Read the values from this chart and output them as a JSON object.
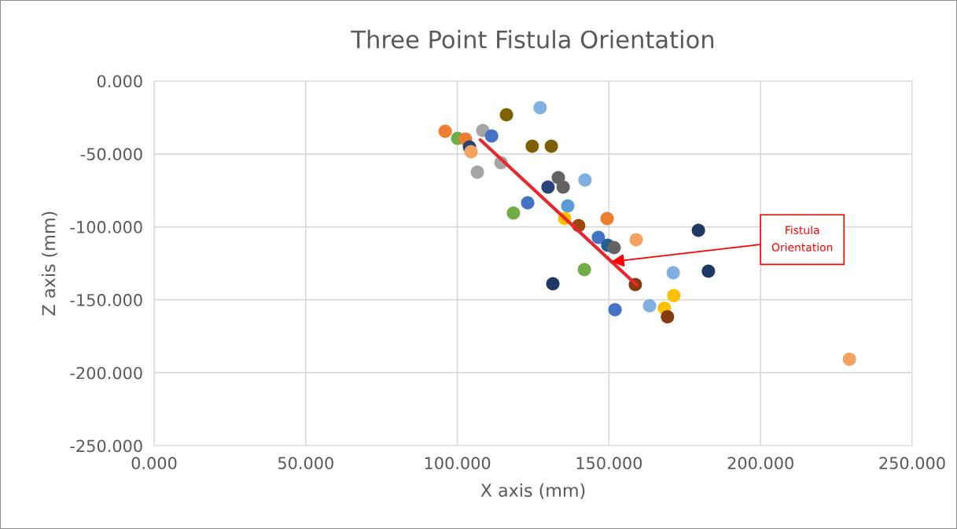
{
  "chart_data": {
    "type": "scatter",
    "title": "Three Point Fistula Orientation",
    "xlabel": "X axis (mm)",
    "ylabel": "Z axis (mm)",
    "xlim": [
      0,
      250
    ],
    "ylim": [
      -250,
      0
    ],
    "xticks": [
      {
        "value": 0,
        "label": "0.000"
      },
      {
        "value": 50,
        "label": "50.000"
      },
      {
        "value": 100,
        "label": "100.000"
      },
      {
        "value": 150,
        "label": "150.000"
      },
      {
        "value": 200,
        "label": "200.000"
      },
      {
        "value": 250,
        "label": "250.000"
      }
    ],
    "yticks": [
      {
        "value": 0,
        "label": "0.000"
      },
      {
        "value": -50,
        "label": "-50.000"
      },
      {
        "value": -100,
        "label": "-100.000"
      },
      {
        "value": -150,
        "label": "-150.000"
      },
      {
        "value": -200,
        "label": "-200.000"
      },
      {
        "value": -250,
        "label": "-250.000"
      }
    ],
    "grid": true,
    "legend": false,
    "series": [
      {
        "marker": "circle",
        "x": [
          96.0,
          100.1,
          102.7,
          104.0,
          104.5,
          108.4,
          111.3,
          116.2,
          127.3,
          124.7,
          131.0,
          106.6,
          114.4,
          133.3,
          129.9,
          134.9,
          142.1,
          123.2,
          118.5,
          136.4,
          135.4,
          140.0,
          149.4,
          146.5,
          149.6,
          151.7,
          159.0,
          179.5,
          141.9,
          131.5,
          171.2,
          182.8,
          158.7,
          171.4,
          152.0,
          163.4,
          168.3,
          169.3,
          229.3
        ],
        "values": [
          -34.5,
          -39.3,
          -39.9,
          -45.3,
          -48.5,
          -33.9,
          -37.7,
          -23.2,
          -18.3,
          -44.7,
          -44.7,
          -62.5,
          -56.0,
          -66.3,
          -72.7,
          -72.7,
          -67.9,
          -83.5,
          -90.5,
          -85.7,
          -94.3,
          -99.1,
          -94.3,
          -107.2,
          -112.6,
          -114.2,
          -108.8,
          -102.4,
          -129.3,
          -139.0,
          -131.5,
          -130.4,
          -139.5,
          -147.1,
          -156.8,
          -154.1,
          -155.7,
          -161.6,
          -190.7
        ],
        "colors": [
          "#ed7d31",
          "#70ad47",
          "#ed7d31",
          "#264478",
          "#f4a261",
          "#a5a5a5",
          "#4472c4",
          "#7f6000",
          "#7fb0e0",
          "#7f6000",
          "#7f6000",
          "#a5a5a5",
          "#a5a5a5",
          "#636363",
          "#264478",
          "#636363",
          "#7fb0e0",
          "#4472c4",
          "#70ad47",
          "#5b9bd5",
          "#ffc000",
          "#9e480e",
          "#ed7d31",
          "#4472c4",
          "#255e91",
          "#636363",
          "#f4a261",
          "#1f3864",
          "#70ad47",
          "#1f3864",
          "#7fb0e0",
          "#1f3864",
          "#843c0c",
          "#ffc000",
          "#4472c4",
          "#7fb0e0",
          "#ffc000",
          "#843c0c",
          "#f4a261"
        ]
      },
      {
        "type": "line",
        "color": "#e8262b",
        "x": [
          107.6,
          159.2
        ],
        "values": [
          -40.4,
          -140.0
        ]
      }
    ],
    "annotations": [
      {
        "text": "Fistula\nOrientation",
        "x": 150.7,
        "y": -124.0
      }
    ]
  }
}
